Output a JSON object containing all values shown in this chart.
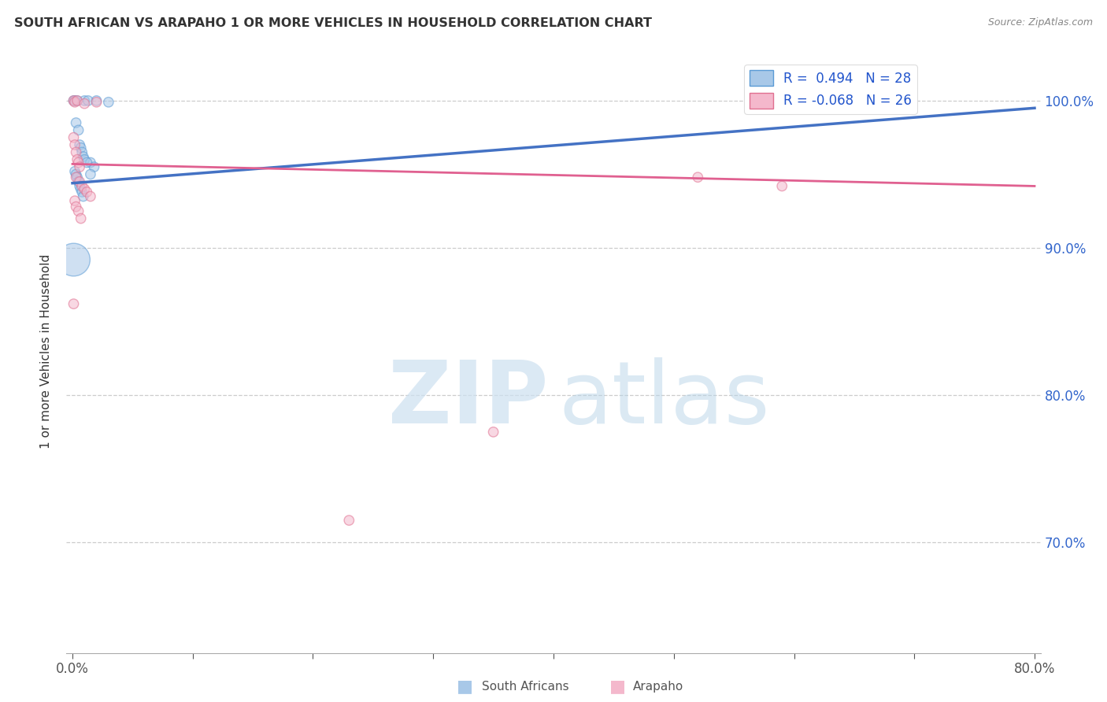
{
  "title": "SOUTH AFRICAN VS ARAPAHO 1 OR MORE VEHICLES IN HOUSEHOLD CORRELATION CHART",
  "source": "Source: ZipAtlas.com",
  "ylabel": "1 or more Vehicles in Household",
  "ytick_labels": [
    "100.0%",
    "90.0%",
    "80.0%",
    "70.0%"
  ],
  "ytick_values": [
    1.0,
    0.9,
    0.8,
    0.7
  ],
  "xlim": [
    -0.005,
    0.805
  ],
  "ylim": [
    0.625,
    1.035
  ],
  "legend_label1": "R =  0.494   N = 28",
  "legend_label2": "R = -0.068   N = 26",
  "line_color1": "#4472c4",
  "line_color2": "#e06090",
  "watermark_zip": "ZIP",
  "watermark_atlas": "atlas",
  "blue_points": [
    [
      0.001,
      1.0
    ],
    [
      0.002,
      1.0
    ],
    [
      0.004,
      1.0
    ],
    [
      0.01,
      1.0
    ],
    [
      0.013,
      1.0
    ],
    [
      0.02,
      1.0
    ],
    [
      0.03,
      0.999
    ],
    [
      0.003,
      0.985
    ],
    [
      0.005,
      0.98
    ],
    [
      0.006,
      0.97
    ],
    [
      0.007,
      0.968
    ],
    [
      0.008,
      0.965
    ],
    [
      0.009,
      0.962
    ],
    [
      0.01,
      0.96
    ],
    [
      0.015,
      0.958
    ],
    [
      0.018,
      0.955
    ],
    [
      0.002,
      0.952
    ],
    [
      0.003,
      0.95
    ],
    [
      0.004,
      0.948
    ],
    [
      0.005,
      0.945
    ],
    [
      0.006,
      0.942
    ],
    [
      0.007,
      0.94
    ],
    [
      0.008,
      0.938
    ],
    [
      0.009,
      0.935
    ],
    [
      0.012,
      0.958
    ],
    [
      0.015,
      0.95
    ],
    [
      0.001,
      0.892
    ],
    [
      0.58,
      0.998
    ]
  ],
  "blue_sizes": [
    80,
    80,
    80,
    80,
    80,
    80,
    80,
    80,
    80,
    80,
    80,
    80,
    80,
    80,
    80,
    80,
    80,
    80,
    80,
    80,
    80,
    80,
    80,
    80,
    80,
    80,
    900,
    80
  ],
  "pink_points": [
    [
      0.001,
      1.0
    ],
    [
      0.002,
      0.999
    ],
    [
      0.004,
      1.0
    ],
    [
      0.01,
      0.998
    ],
    [
      0.02,
      0.999
    ],
    [
      0.001,
      0.975
    ],
    [
      0.002,
      0.97
    ],
    [
      0.003,
      0.965
    ],
    [
      0.004,
      0.96
    ],
    [
      0.005,
      0.958
    ],
    [
      0.006,
      0.955
    ],
    [
      0.003,
      0.948
    ],
    [
      0.006,
      0.945
    ],
    [
      0.008,
      0.942
    ],
    [
      0.01,
      0.94
    ],
    [
      0.012,
      0.938
    ],
    [
      0.015,
      0.935
    ],
    [
      0.002,
      0.932
    ],
    [
      0.003,
      0.928
    ],
    [
      0.005,
      0.925
    ],
    [
      0.007,
      0.92
    ],
    [
      0.001,
      0.862
    ],
    [
      0.35,
      0.775
    ],
    [
      0.23,
      0.715
    ],
    [
      0.52,
      0.948
    ],
    [
      0.59,
      0.942
    ]
  ],
  "pink_sizes": [
    80,
    80,
    80,
    80,
    80,
    80,
    80,
    80,
    80,
    80,
    80,
    80,
    80,
    80,
    80,
    80,
    80,
    80,
    80,
    80,
    80,
    80,
    80,
    80,
    80,
    80
  ],
  "blue_line": [
    0.0,
    0.944,
    0.8,
    0.995
  ],
  "pink_line": [
    0.0,
    0.957,
    0.8,
    0.942
  ]
}
